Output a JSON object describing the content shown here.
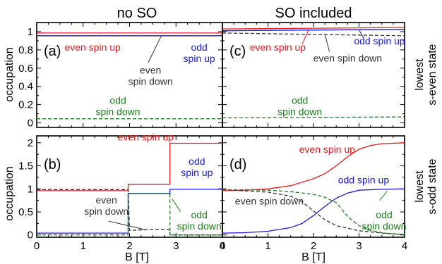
{
  "figure": {
    "col_titles": [
      "no SO",
      "SO included"
    ],
    "row_titles": [
      "lowest\ns-even state",
      "lowest\ns-odd state"
    ],
    "xlabel": "B [T]",
    "ylabel": "occupation"
  },
  "colors": {
    "red": "#e8191c",
    "blue": "#1a1adb",
    "black": "#333333",
    "green": "#1e7d1e"
  },
  "chart_data": [
    {
      "panel": "(a)",
      "type": "line",
      "xlim": [
        0,
        4
      ],
      "ylim": [
        -0.05,
        1.1
      ],
      "xticks": [
        0,
        1,
        2,
        3,
        4
      ],
      "yticks": [
        0,
        0.2,
        0.4,
        0.6,
        0.8,
        1
      ],
      "ytick_labels": [
        "0",
        "0.2",
        "0.4",
        "0.6",
        "0.8",
        "1"
      ],
      "series": [
        {
          "color": "red",
          "dash": false,
          "x": [
            0,
            4
          ],
          "y": [
            0.985,
            0.985
          ]
        },
        {
          "color": "blue",
          "dash": false,
          "x": [
            0,
            4
          ],
          "y": [
            0.955,
            0.955
          ]
        },
        {
          "color": "black",
          "dash": true,
          "x": [
            0,
            4
          ],
          "y": [
            0.955,
            0.955
          ]
        },
        {
          "color": "green",
          "dash": true,
          "x": [
            0,
            4
          ],
          "y": [
            0.045,
            0.045
          ]
        }
      ],
      "annotations": [
        {
          "text": "even spin up",
          "color": "red",
          "x": 0.6,
          "y": 0.79,
          "anchor": "start"
        },
        {
          "text": "even\nspin down",
          "color": "black",
          "x": 2.45,
          "y": 0.54,
          "anchor": "middle"
        },
        {
          "text": "odd\nspin up",
          "color": "blue",
          "x": 3.5,
          "y": 0.79,
          "anchor": "middle"
        },
        {
          "text": "odd\nspin down",
          "color": "green",
          "x": 1.75,
          "y": 0.21,
          "anchor": "middle"
        }
      ],
      "leaders": [
        {
          "color": "black",
          "x1": 2.4,
          "y1": 0.66,
          "x2": 2.68,
          "y2": 0.95
        }
      ]
    },
    {
      "panel": "(c)",
      "type": "line",
      "xlim": [
        0,
        4
      ],
      "ylim": [
        -0.05,
        1.1
      ],
      "xticks": [
        0,
        1,
        2,
        3,
        4
      ],
      "yticks": [
        0,
        0.2,
        0.4,
        0.6,
        0.8,
        1
      ],
      "series": [
        {
          "color": "red",
          "dash": false,
          "x": [
            0,
            4
          ],
          "y": [
            1.03,
            1.045
          ]
        },
        {
          "color": "blue",
          "dash": false,
          "x": [
            0,
            4
          ],
          "y": [
            1.01,
            1.025
          ]
        },
        {
          "color": "black",
          "dash": true,
          "x": [
            0,
            4
          ],
          "y": [
            0.985,
            0.955
          ]
        },
        {
          "color": "green",
          "dash": true,
          "x": [
            0,
            4
          ],
          "y": [
            0.055,
            0.065
          ]
        }
      ],
      "annotations": [
        {
          "text": "even spin up",
          "color": "red",
          "x": 0.6,
          "y": 0.79,
          "anchor": "start"
        },
        {
          "text": "odd spin up",
          "color": "blue",
          "x": 3.45,
          "y": 0.86,
          "anchor": "middle"
        },
        {
          "text": "even spin down",
          "color": "black",
          "x": 2.75,
          "y": 0.67,
          "anchor": "middle"
        },
        {
          "text": "odd\nspin down",
          "color": "green",
          "x": 1.7,
          "y": 0.21,
          "anchor": "middle"
        }
      ],
      "leaders": [
        {
          "color": "red",
          "x1": 1.75,
          "y1": 0.86,
          "x2": 1.9,
          "y2": 1.03
        },
        {
          "color": "blue",
          "x1": 3.1,
          "y1": 0.93,
          "x2": 3.0,
          "y2": 1.02
        },
        {
          "color": "black",
          "x1": 2.35,
          "y1": 0.78,
          "x2": 2.25,
          "y2": 0.97
        }
      ]
    },
    {
      "panel": "(b)",
      "type": "line",
      "xlim": [
        0,
        4
      ],
      "ylim": [
        -0.05,
        2.15
      ],
      "xticks": [
        0,
        1,
        2,
        3,
        4
      ],
      "yticks": [
        0,
        0.5,
        1,
        1.5,
        2
      ],
      "ytick_labels": [
        "0",
        "0.5",
        "1",
        "1.5",
        "2"
      ],
      "xtick_labels": [
        "0",
        "1",
        "2",
        "3",
        "4"
      ],
      "series": [
        {
          "color": "red",
          "dash": false,
          "x": [
            0,
            1.97,
            1.97,
            2.87,
            2.87,
            4
          ],
          "y": [
            0.96,
            0.96,
            1.1,
            1.1,
            1.99,
            1.99
          ]
        },
        {
          "color": "blue",
          "dash": false,
          "x": [
            0,
            1.97,
            1.97,
            2.87,
            2.87,
            4
          ],
          "y": [
            0.04,
            0.04,
            0.9,
            0.9,
            0.99,
            0.99
          ]
        },
        {
          "color": "black",
          "dash": true,
          "x": [
            0,
            1.97,
            2.0,
            2.05,
            2.5,
            2.87,
            2.87,
            4
          ],
          "y": [
            0.985,
            0.985,
            0.1,
            0.1,
            0.12,
            0.12,
            0.0,
            0.0
          ]
        },
        {
          "color": "green",
          "dash": true,
          "x": [
            0,
            1.97,
            1.97,
            2.87,
            2.87,
            4
          ],
          "y": [
            0.0,
            0.0,
            0.9,
            0.9,
            0.0,
            0.0
          ]
        }
      ],
      "annotations": [
        {
          "text": "even spin up",
          "color": "red",
          "x": 2.95,
          "y": 2.05,
          "anchor": "end"
        },
        {
          "text": "odd\nspin up",
          "color": "blue",
          "x": 3.45,
          "y": 1.52,
          "anchor": "middle"
        },
        {
          "text": "even\nspin down",
          "color": "black",
          "x": 1.5,
          "y": 0.68,
          "anchor": "middle"
        },
        {
          "text": "odd\nspin down",
          "color": "green",
          "x": 3.5,
          "y": 0.36,
          "anchor": "middle"
        }
      ],
      "leaders": [
        {
          "color": "black",
          "x1": 1.55,
          "y1": 0.3,
          "x2": 2.35,
          "y2": 0.11
        },
        {
          "color": "green",
          "x1": 3.1,
          "y1": 0.5,
          "x2": 2.92,
          "y2": 0.78
        }
      ]
    },
    {
      "panel": "(d)",
      "type": "line",
      "xlim": [
        0,
        4
      ],
      "ylim": [
        -0.05,
        2.15
      ],
      "xticks": [
        0,
        1,
        2,
        3,
        4
      ],
      "yticks": [
        0,
        0.5,
        1,
        1.5,
        2
      ],
      "xtick_labels": [
        "0",
        "1",
        "2",
        "3",
        "4"
      ],
      "series": [
        {
          "color": "red",
          "dash": false,
          "x": [
            0,
            0.5,
            1,
            1.5,
            2,
            2.25,
            2.5,
            2.75,
            3,
            3.25,
            3.5,
            3.75,
            4
          ],
          "y": [
            0.96,
            0.97,
            1.0,
            1.07,
            1.22,
            1.33,
            1.5,
            1.7,
            1.86,
            1.94,
            1.98,
            1.99,
            2.0
          ]
        },
        {
          "color": "blue",
          "dash": false,
          "x": [
            0,
            0.5,
            1,
            1.5,
            1.75,
            2,
            2.25,
            2.5,
            2.75,
            3,
            3.5,
            4
          ],
          "y": [
            0.04,
            0.05,
            0.08,
            0.16,
            0.25,
            0.42,
            0.62,
            0.8,
            0.91,
            0.97,
            0.99,
            1.0
          ]
        },
        {
          "color": "black",
          "dash": true,
          "x": [
            0,
            1,
            1.5,
            1.75,
            2,
            2.25,
            2.5,
            3,
            3.5,
            4
          ],
          "y": [
            0.985,
            0.93,
            0.84,
            0.72,
            0.52,
            0.33,
            0.2,
            0.09,
            0.04,
            0.01
          ]
        },
        {
          "color": "green",
          "dash": true,
          "x": [
            0,
            1,
            1.5,
            2,
            2.25,
            2.5,
            2.75,
            3,
            3.25,
            3.5,
            3.75,
            4
          ],
          "y": [
            0.985,
            0.97,
            0.94,
            0.88,
            0.82,
            0.7,
            0.4,
            0.2,
            0.1,
            0.05,
            0.02,
            0.01
          ]
        }
      ],
      "annotations": [
        {
          "text": "even spin up",
          "color": "red",
          "x": 2.3,
          "y": 1.78,
          "anchor": "middle"
        },
        {
          "text": "odd spin up",
          "color": "blue",
          "x": 3.1,
          "y": 1.12,
          "anchor": "middle"
        },
        {
          "text": "even spin down",
          "color": "black",
          "x": 1.03,
          "y": 0.66,
          "anchor": "middle"
        },
        {
          "text": "odd\nspin down",
          "color": "green",
          "x": 3.55,
          "y": 0.36,
          "anchor": "middle"
        }
      ],
      "leaders": [
        {
          "color": "green",
          "x1": 3.45,
          "y1": 0.75,
          "x2": 3.62,
          "y2": 0.95
        }
      ]
    }
  ]
}
